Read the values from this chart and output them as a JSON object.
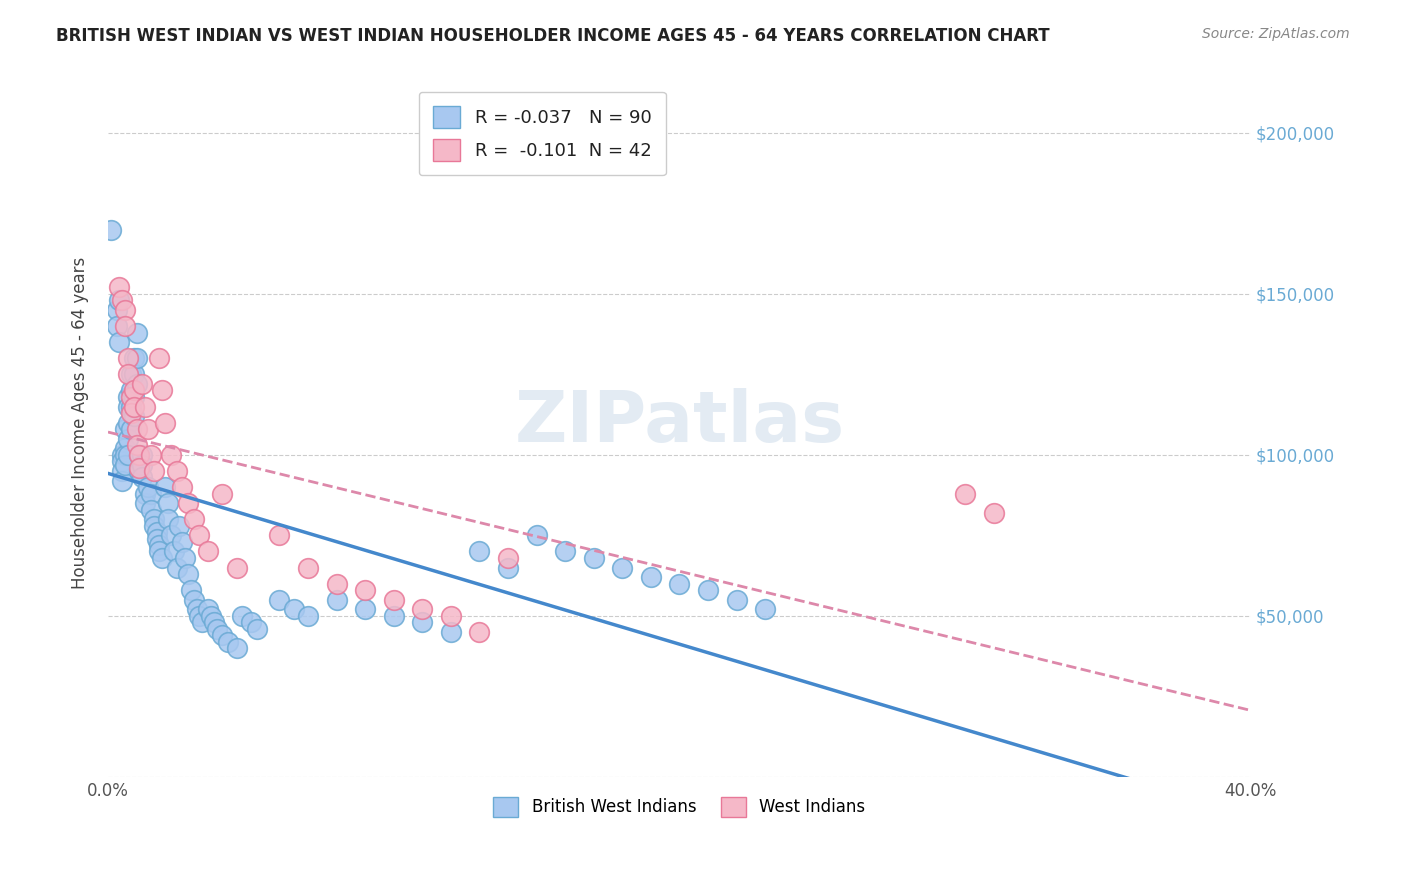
{
  "title": "BRITISH WEST INDIAN VS WEST INDIAN HOUSEHOLDER INCOME AGES 45 - 64 YEARS CORRELATION CHART",
  "source": "Source: ZipAtlas.com",
  "ylabel": "Householder Income Ages 45 - 64 years",
  "xlabel": "",
  "xlim": [
    0.0,
    0.4
  ],
  "ylim": [
    0,
    220000
  ],
  "yticks": [
    0,
    50000,
    100000,
    150000,
    200000
  ],
  "xticks": [
    0.0,
    0.05,
    0.1,
    0.15,
    0.2,
    0.25,
    0.3,
    0.35,
    0.4
  ],
  "xtick_labels": [
    "0.0%",
    "",
    "",
    "",
    "",
    "",
    "",
    "",
    "40.0%"
  ],
  "series1_color": "#a8c8f0",
  "series1_edge": "#6aaad4",
  "series2_color": "#f5b8c8",
  "series2_edge": "#e87898",
  "series1_label": "British West Indians",
  "series2_label": "West Indians",
  "legend_r1": "R = -0.037",
  "legend_n1": "N = 90",
  "legend_r2": "R =  -0.101",
  "legend_n2": "N = 42",
  "r1": -0.037,
  "n1": 90,
  "r2": -0.101,
  "n2": 42,
  "watermark": "ZIPatlas",
  "background_color": "#ffffff",
  "grid_color": "#cccccc",
  "right_tick_color": "#6aaad4",
  "series1_x": [
    0.001,
    0.003,
    0.003,
    0.004,
    0.004,
    0.005,
    0.005,
    0.005,
    0.005,
    0.006,
    0.006,
    0.006,
    0.006,
    0.007,
    0.007,
    0.007,
    0.007,
    0.007,
    0.008,
    0.008,
    0.008,
    0.008,
    0.009,
    0.009,
    0.009,
    0.009,
    0.01,
    0.01,
    0.01,
    0.011,
    0.011,
    0.012,
    0.012,
    0.012,
    0.013,
    0.013,
    0.014,
    0.015,
    0.015,
    0.016,
    0.016,
    0.017,
    0.017,
    0.018,
    0.018,
    0.019,
    0.02,
    0.021,
    0.021,
    0.022,
    0.023,
    0.024,
    0.025,
    0.026,
    0.027,
    0.028,
    0.029,
    0.03,
    0.031,
    0.032,
    0.033,
    0.035,
    0.036,
    0.037,
    0.038,
    0.04,
    0.042,
    0.045,
    0.047,
    0.05,
    0.052,
    0.06,
    0.065,
    0.07,
    0.08,
    0.09,
    0.1,
    0.11,
    0.12,
    0.13,
    0.14,
    0.15,
    0.16,
    0.17,
    0.18,
    0.19,
    0.2,
    0.21,
    0.22,
    0.23
  ],
  "series1_y": [
    170000,
    145000,
    140000,
    135000,
    148000,
    100000,
    98000,
    95000,
    92000,
    108000,
    102000,
    100000,
    97000,
    118000,
    115000,
    110000,
    105000,
    100000,
    125000,
    120000,
    115000,
    108000,
    130000,
    125000,
    118000,
    112000,
    138000,
    130000,
    122000,
    100000,
    95000,
    100000,
    97000,
    93000,
    88000,
    85000,
    90000,
    88000,
    83000,
    80000,
    78000,
    76000,
    74000,
    72000,
    70000,
    68000,
    90000,
    85000,
    80000,
    75000,
    70000,
    65000,
    78000,
    73000,
    68000,
    63000,
    58000,
    55000,
    52000,
    50000,
    48000,
    52000,
    50000,
    48000,
    46000,
    44000,
    42000,
    40000,
    50000,
    48000,
    46000,
    55000,
    52000,
    50000,
    55000,
    52000,
    50000,
    48000,
    45000,
    70000,
    65000,
    75000,
    70000,
    68000,
    65000,
    62000,
    60000,
    58000,
    55000,
    52000
  ],
  "series2_x": [
    0.004,
    0.005,
    0.006,
    0.006,
    0.007,
    0.007,
    0.008,
    0.008,
    0.009,
    0.009,
    0.01,
    0.01,
    0.011,
    0.011,
    0.012,
    0.013,
    0.014,
    0.015,
    0.016,
    0.018,
    0.019,
    0.02,
    0.022,
    0.024,
    0.026,
    0.028,
    0.03,
    0.032,
    0.035,
    0.04,
    0.045,
    0.06,
    0.07,
    0.08,
    0.09,
    0.1,
    0.11,
    0.12,
    0.13,
    0.14,
    0.3,
    0.31
  ],
  "series2_y": [
    152000,
    148000,
    145000,
    140000,
    130000,
    125000,
    118000,
    113000,
    120000,
    115000,
    108000,
    103000,
    100000,
    96000,
    122000,
    115000,
    108000,
    100000,
    95000,
    130000,
    120000,
    110000,
    100000,
    95000,
    90000,
    85000,
    80000,
    75000,
    70000,
    88000,
    65000,
    75000,
    65000,
    60000,
    58000,
    55000,
    52000,
    50000,
    45000,
    68000,
    88000,
    82000
  ]
}
